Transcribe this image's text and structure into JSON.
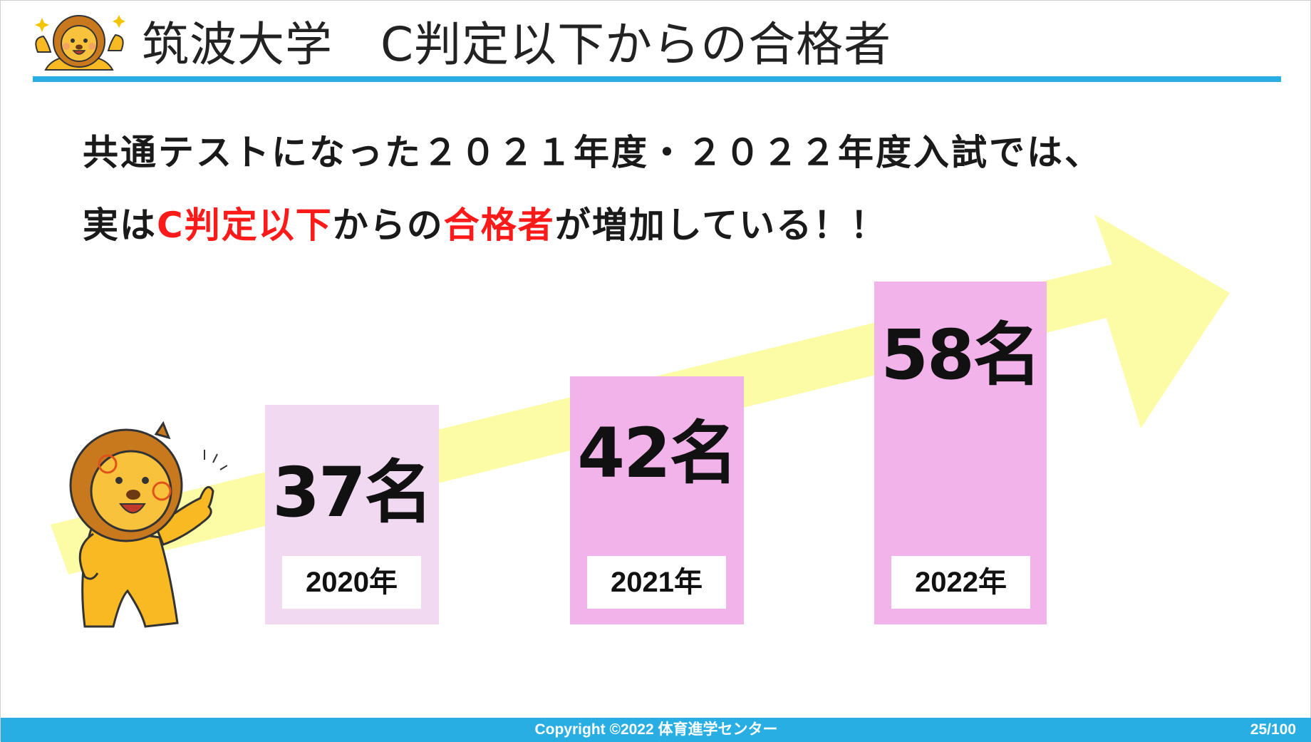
{
  "header": {
    "title": "筑波大学　C判定以下からの合格者"
  },
  "lead": {
    "line1": "共通テストになった２０２１年度・２０２２年度入試では、",
    "line2_part1": "実は",
    "line2_red1": "C判定以下",
    "line2_part2": "からの",
    "line2_red2": "合格者",
    "line2_part3": "が増加している！！"
  },
  "chart_data": {
    "type": "bar",
    "categories": [
      "2020年",
      "2021年",
      "2022年"
    ],
    "value_labels": [
      "37名",
      "42名",
      "58名"
    ],
    "values": [
      37,
      42,
      58
    ],
    "title": "",
    "xlabel": "",
    "ylabel": ""
  },
  "colors": {
    "accent": "#29aee3",
    "highlight_red": "#ff1a1a",
    "bar_2020": "#f1d9f1",
    "bar_2021_2022": "#f2b3ea",
    "arrow": "#fdfca6"
  },
  "icons": {
    "logo": "lion-cheer-icon",
    "mascot": "lion-thumbs-up-icon"
  },
  "footer": {
    "copyright": "Copyright ©2022 体育進学センター",
    "page": "25/100"
  }
}
